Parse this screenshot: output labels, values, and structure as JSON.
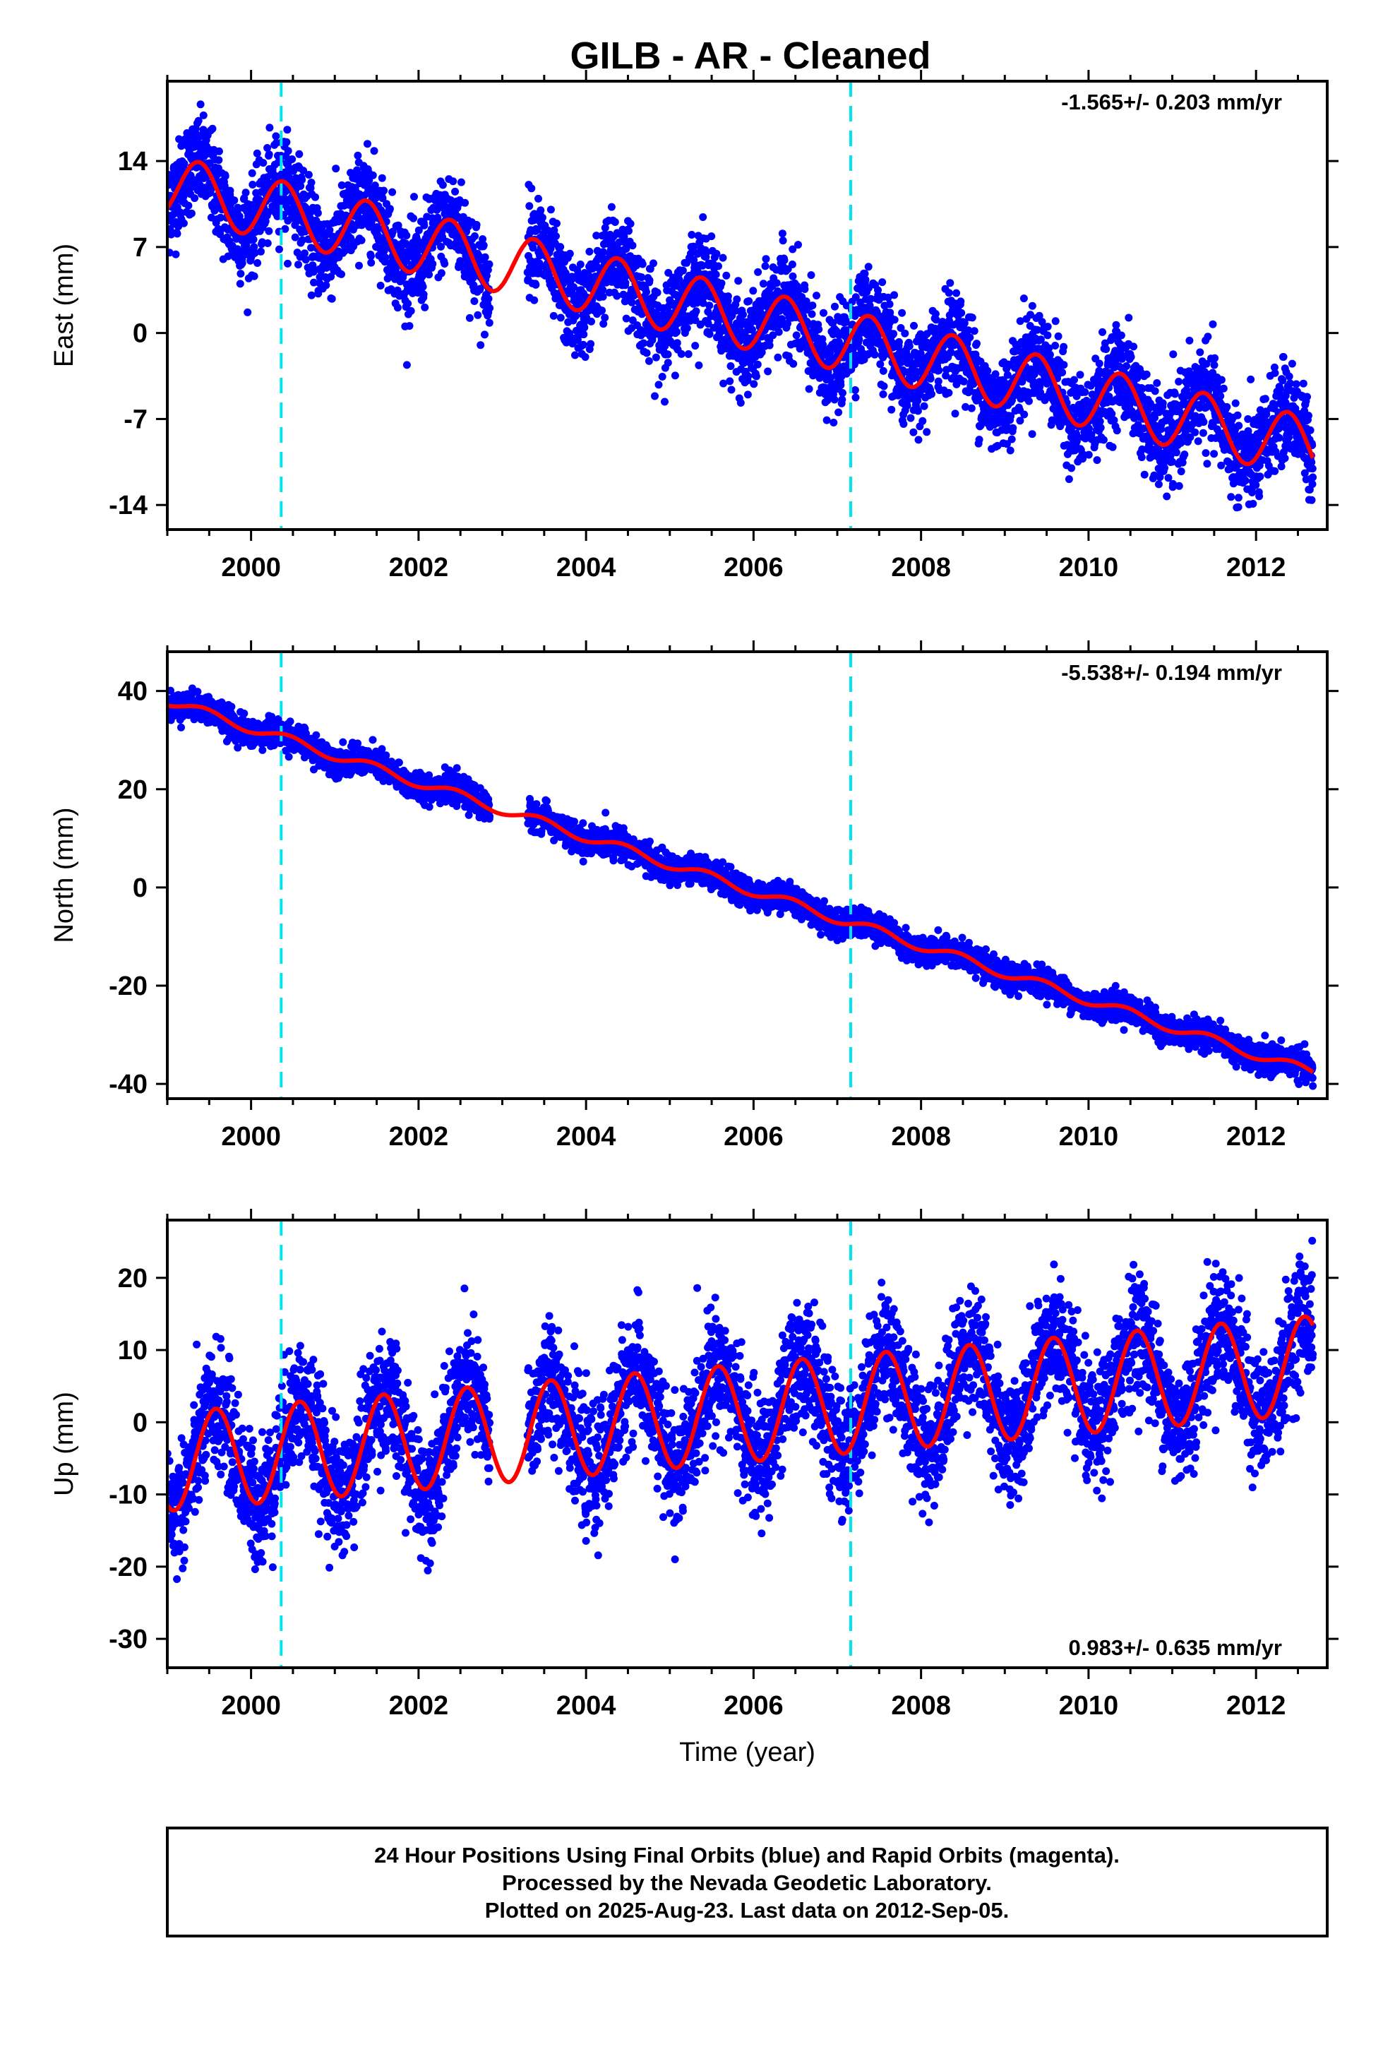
{
  "chart_data": {
    "type": "scatter",
    "title": "GILB  - AR - Cleaned",
    "xlabel": "Time (year)",
    "xlim": [
      1999.0,
      2012.85
    ],
    "x_ticks": [
      2000,
      2002,
      2004,
      2006,
      2008,
      2010,
      2012
    ],
    "data_start": 1999.0,
    "data_end": 2012.68,
    "offsets": [
      2000.36,
      2007.16
    ],
    "colors": {
      "points": "#0000ff",
      "fit": "#ff0000",
      "offset_line": "#00e5ee",
      "axis": "#000000"
    },
    "legend": "none",
    "grid": false,
    "panels": [
      {
        "name": "east",
        "ylabel": "East (mm)",
        "ylim": [
          -16,
          20.5
        ],
        "y_ticks": [
          14,
          7,
          0,
          -7,
          -14
        ],
        "rate": "-1.565+/- 0.203 mm/yr",
        "rate_position": "top-right",
        "trend": {
          "ref_year": 1999.0,
          "intercept": 12.0,
          "slope": -1.565
        },
        "seasonal": {
          "annual_amp": 2.5,
          "phase_peak": 0.38
        },
        "noise_sd": 1.9,
        "steps": [
          {
            "year": 2000.36,
            "offset": 0.0
          },
          {
            "year": 2007.16,
            "offset": 0.0
          }
        ]
      },
      {
        "name": "north",
        "ylabel": "North (mm)",
        "ylim": [
          -43,
          48
        ],
        "y_ticks": [
          40,
          20,
          0,
          -20,
          -40
        ],
        "rate": "-5.538+/- 0.194 mm/yr",
        "rate_position": "top-right",
        "trend": {
          "ref_year": 1999.0,
          "intercept": 38.0,
          "slope": -5.538
        },
        "seasonal": {
          "annual_amp": 1.0,
          "phase_peak": 0.45
        },
        "noise_sd": 1.4,
        "steps": [
          {
            "year": 2000.36,
            "offset": 0.0
          },
          {
            "year": 2007.16,
            "offset": 0.0
          }
        ]
      },
      {
        "name": "up",
        "ylabel": "Up (mm)",
        "ylim": [
          -34,
          28
        ],
        "y_ticks": [
          20,
          10,
          0,
          -10,
          -20,
          -30
        ],
        "rate": "0.983+/- 0.635 mm/yr",
        "rate_position": "bottom-right",
        "trend": {
          "ref_year": 1999.0,
          "intercept": -5.5,
          "slope": 0.983
        },
        "seasonal": {
          "annual_amp": 6.8,
          "phase_peak": 0.58
        },
        "noise_sd": 4.2,
        "steps": [
          {
            "year": 2000.36,
            "offset": 0.0
          },
          {
            "year": 2007.16,
            "offset": 0.0
          }
        ]
      }
    ],
    "footer": [
      "24 Hour Positions Using Final Orbits (blue) and Rapid Orbits (magenta).",
      "Processed by the Nevada Geodetic Laboratory.",
      "Plotted on 2025-Aug-23. Last data on 2012-Sep-05."
    ]
  }
}
